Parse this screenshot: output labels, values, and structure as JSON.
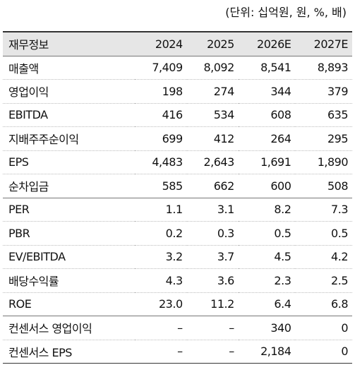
{
  "unit": "(단위: 십억원, 원, %, 배)",
  "table": {
    "header": [
      "재무정보",
      "2024",
      "2025",
      "2026E",
      "2027E"
    ],
    "rows": [
      [
        "매출액",
        "7,409",
        "8,092",
        "8,541",
        "8,893"
      ],
      [
        "영업이익",
        "198",
        "274",
        "344",
        "379"
      ],
      [
        "EBITDA",
        "416",
        "534",
        "608",
        "635"
      ],
      [
        "지배주주순이익",
        "699",
        "412",
        "264",
        "295"
      ],
      [
        "EPS",
        "4,483",
        "2,643",
        "1,691",
        "1,890"
      ],
      [
        "순차입금",
        "585",
        "662",
        "600",
        "508"
      ],
      [
        "PER",
        "1.1",
        "3.1",
        "8.2",
        "7.3"
      ],
      [
        "PBR",
        "0.2",
        "0.3",
        "0.5",
        "0.5"
      ],
      [
        "EV/EBITDA",
        "3.2",
        "3.7",
        "4.5",
        "4.2"
      ],
      [
        "배당수익률",
        "4.3",
        "3.6",
        "2.3",
        "2.5"
      ],
      [
        "ROE",
        "23.0",
        "11.2",
        "6.4",
        "6.8"
      ],
      [
        "컨센서스 영업이익",
        "–",
        "–",
        "340",
        "0"
      ],
      [
        "컨센서스 EPS",
        "–",
        "–",
        "2,184",
        "0"
      ]
    ]
  }
}
